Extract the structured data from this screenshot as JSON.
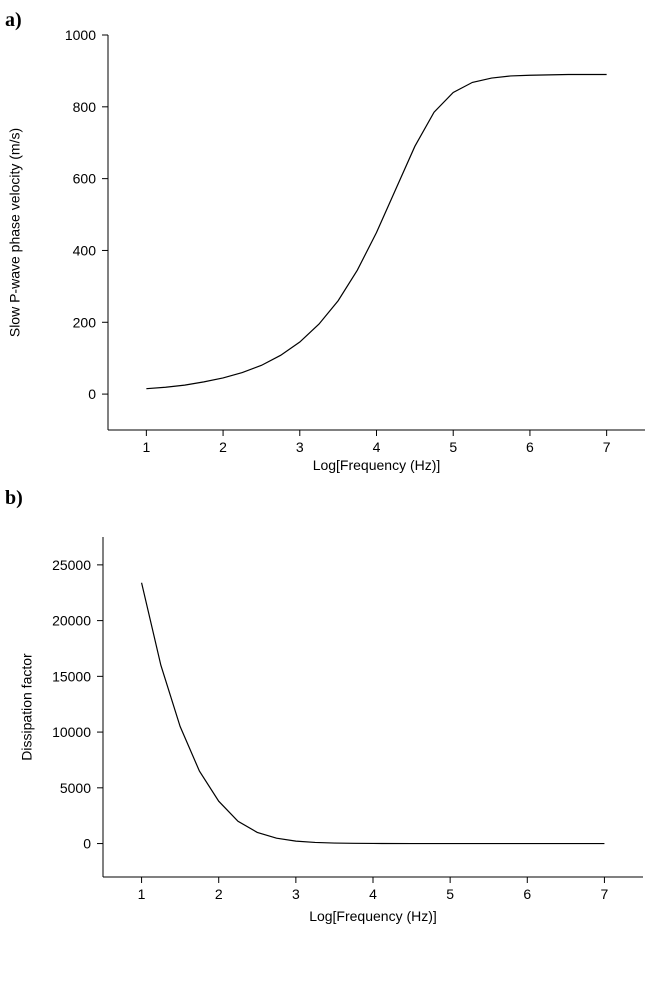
{
  "chart_data": [
    {
      "type": "line",
      "panel_label": "a)",
      "x_label": "Log[Frequency (Hz)]",
      "y_label": "Slow P-wave phase velocity (m/s)",
      "xlim": [
        0.5,
        7.5
      ],
      "xticks": [
        1,
        2,
        3,
        4,
        5,
        6,
        7
      ],
      "ylim": [
        -100,
        1000
      ],
      "yticks": [
        0,
        200,
        400,
        600,
        800,
        1000
      ],
      "color": "#000000",
      "x": [
        1,
        1.25,
        1.5,
        1.75,
        2,
        2.25,
        2.5,
        2.75,
        3,
        3.25,
        3.5,
        3.75,
        4,
        4.25,
        4.5,
        4.75,
        5,
        5.25,
        5.5,
        5.75,
        6,
        6.25,
        6.5,
        6.75,
        7
      ],
      "values": [
        15,
        19,
        25,
        34,
        45,
        60,
        80,
        108,
        145,
        195,
        260,
        345,
        450,
        570,
        690,
        785,
        840,
        868,
        880,
        886,
        888,
        889,
        890,
        890,
        890
      ]
    },
    {
      "type": "line",
      "panel_label": "b)",
      "x_label": "Log[Frequency (Hz)]",
      "y_label": "Dissipation factor",
      "xlim": [
        0.5,
        7.5
      ],
      "xticks": [
        1,
        2,
        3,
        4,
        5,
        6,
        7
      ],
      "ylim": [
        -3000,
        27500
      ],
      "yticks": [
        0,
        5000,
        10000,
        15000,
        20000,
        25000
      ],
      "color": "#000000",
      "x": [
        1,
        1.25,
        1.5,
        1.75,
        2,
        2.25,
        2.5,
        2.75,
        3,
        3.25,
        3.5,
        3.75,
        4,
        4.5,
        5,
        5.5,
        6,
        6.5,
        7
      ],
      "values": [
        23400,
        16000,
        10500,
        6500,
        3800,
        2000,
        1000,
        480,
        220,
        100,
        45,
        20,
        9,
        2,
        1,
        0,
        0,
        0,
        0
      ]
    }
  ]
}
